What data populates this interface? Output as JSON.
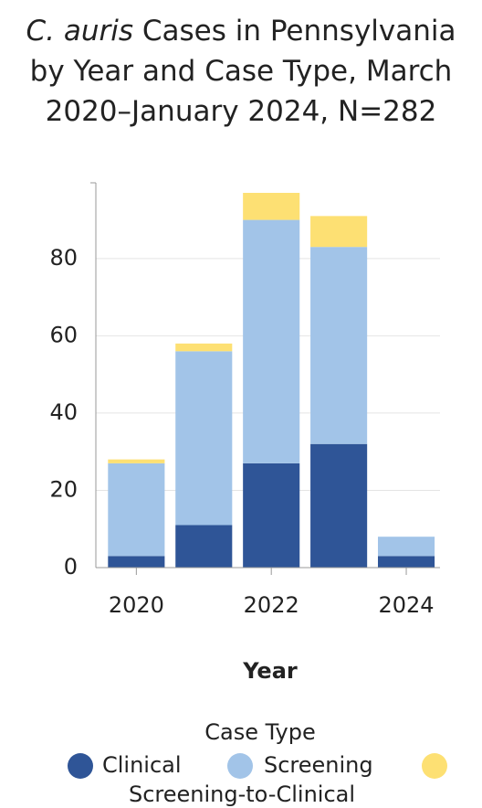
{
  "chart_data": {
    "type": "stacked_bar",
    "title_italic": "C. auris",
    "title": " Cases in Pennsylvania by Year and Case Type, March 2020–January 2024, N=282",
    "x_label": "Year",
    "legend_title": "Case Type",
    "x": [
      2020,
      2021,
      2022,
      2023,
      2024
    ],
    "series": [
      {
        "name": "Clinical",
        "color": "#2f5597",
        "values": [
          3,
          11,
          27,
          32,
          3
        ]
      },
      {
        "name": "Screening",
        "color": "#a2c4e8",
        "values": [
          24,
          45,
          63,
          51,
          5
        ]
      },
      {
        "name": "Screening-to-Clinical",
        "color": "#fde073",
        "values": [
          1,
          2,
          7,
          8,
          0
        ]
      }
    ],
    "xlim": [
      2019.4,
      2024.5
    ],
    "xticks": [
      2020,
      2022,
      2024
    ],
    "ylim": [
      0,
      99.6
    ],
    "yticks": [
      0,
      20,
      40,
      60,
      80
    ],
    "grid": true
  }
}
